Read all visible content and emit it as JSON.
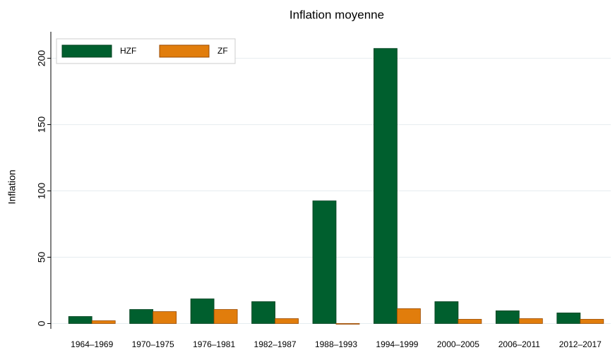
{
  "chart_data": {
    "type": "bar",
    "title": "Inflation moyenne",
    "y_label": "Inflation",
    "categories": [
      "1964–1969",
      "1970–1975",
      "1976–1981",
      "1982–1987",
      "1988–1993",
      "1994–1999",
      "2000–2005",
      "2006–2011",
      "2012–2017"
    ],
    "series": [
      {
        "name": "HZF",
        "color": "#005f2e",
        "values": [
          5.3,
          10.6,
          18.6,
          16.5,
          92.5,
          207.4,
          16.5,
          9.6,
          8.0
        ]
      },
      {
        "name": "ZF",
        "color": "#e17d0c",
        "values": [
          2.1,
          9.0,
          10.6,
          3.7,
          -0.5,
          11.2,
          3.2,
          3.7,
          3.2
        ]
      }
    ],
    "ylim": [
      -4,
      220
    ],
    "yticks": [
      0,
      50,
      100,
      150,
      200
    ],
    "grid": true,
    "legend": "top-left"
  }
}
